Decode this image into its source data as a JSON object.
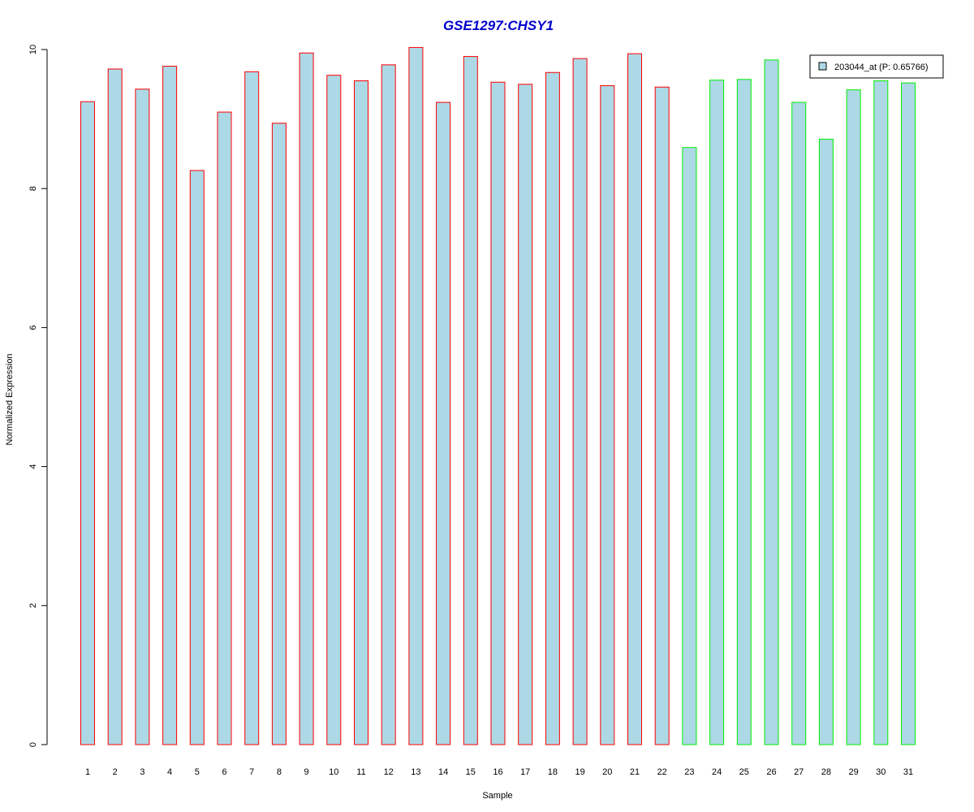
{
  "chart_data": {
    "type": "bar",
    "title": "GSE1297:CHSY1",
    "xlabel": "Sample",
    "ylabel": "Normalized Expression",
    "ylim": [
      0,
      10
    ],
    "yticks": [
      0,
      2,
      4,
      6,
      8,
      10
    ],
    "categories": [
      "1",
      "2",
      "3",
      "4",
      "5",
      "6",
      "7",
      "8",
      "9",
      "10",
      "11",
      "12",
      "13",
      "14",
      "15",
      "16",
      "17",
      "18",
      "19",
      "20",
      "21",
      "22",
      "23",
      "24",
      "25",
      "26",
      "27",
      "28",
      "29",
      "30",
      "31"
    ],
    "series": [
      {
        "name": "203044_at (P: 0.65766)",
        "values": [
          9.25,
          9.72,
          9.43,
          9.76,
          8.26,
          9.1,
          9.68,
          8.94,
          9.95,
          9.63,
          9.55,
          9.78,
          10.03,
          9.24,
          9.9,
          9.53,
          9.5,
          9.67,
          9.87,
          9.48,
          9.94,
          9.46,
          8.59,
          9.56,
          9.57,
          9.85,
          9.24,
          8.71,
          9.42,
          9.55,
          9.52
        ]
      }
    ],
    "groups": [
      {
        "samples": [
          1,
          22
        ],
        "border_color": "#ff0000"
      },
      {
        "samples": [
          23,
          31
        ],
        "border_color": "#00ee00"
      }
    ],
    "fill_color": "#add8e6",
    "title_color": "#0000cc",
    "legend_position": "top-right",
    "grid": false
  }
}
